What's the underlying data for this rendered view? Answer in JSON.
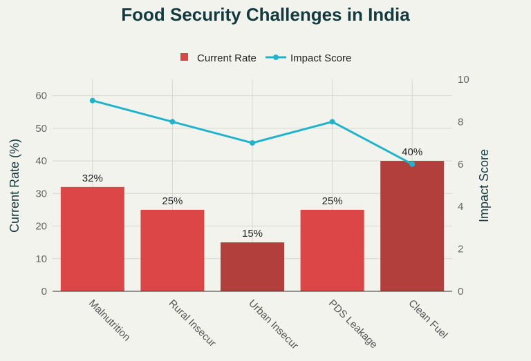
{
  "chart_data": {
    "type": "bar",
    "title": "Food Security Challenges in India",
    "categories": [
      "Malnutrition",
      "Rural Insecur",
      "Urban Insecur",
      "PDS Leakage",
      "Clean Fuel"
    ],
    "series": [
      {
        "name": "Current Rate",
        "type": "bar",
        "axis": "left",
        "values": [
          32,
          25,
          15,
          25,
          40
        ],
        "data_labels": [
          "32%",
          "25%",
          "15%",
          "25%",
          "40%"
        ],
        "colors": [
          "#dc4646",
          "#dc4646",
          "#b23f3b",
          "#dc4646",
          "#b23f3b"
        ]
      },
      {
        "name": "Impact Score",
        "type": "line",
        "axis": "right",
        "values": [
          9,
          8,
          7,
          8,
          6
        ],
        "color": "#1fb3cc"
      }
    ],
    "ylabel": "Current Rate (%)",
    "y2label": "Impact Score",
    "ylim": [
      0,
      65
    ],
    "y2lim": [
      0,
      10
    ],
    "yticks": [
      0,
      10,
      20,
      30,
      40,
      50,
      60
    ],
    "y2ticks": [
      0,
      2,
      4,
      6,
      8,
      10
    ],
    "grid": true,
    "legend_position": "top-center"
  }
}
